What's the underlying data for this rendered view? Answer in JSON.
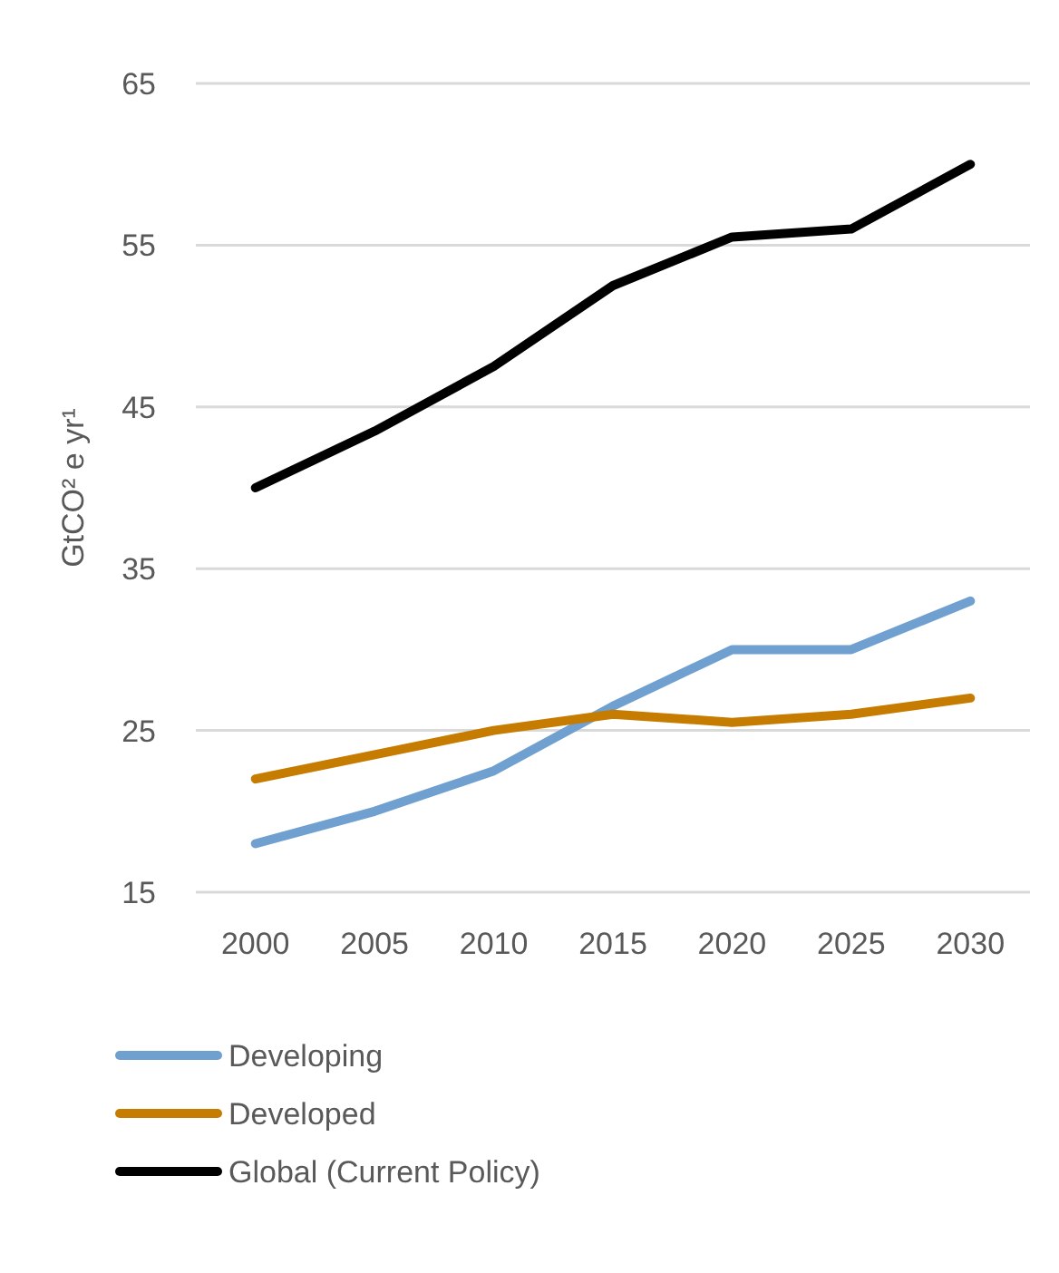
{
  "chart_data": {
    "type": "line",
    "ylabel": "GtCO² e yr¹",
    "categories": [
      "2000",
      "2005",
      "2010",
      "2015",
      "2020",
      "2025",
      "2030"
    ],
    "series": [
      {
        "name": "Developing",
        "color": "#6fa0d0",
        "values": [
          18,
          20,
          22.5,
          26.5,
          30,
          30,
          33
        ]
      },
      {
        "name": "Developed",
        "color": "#c67c00",
        "values": [
          22,
          23.5,
          25,
          26,
          25.5,
          26,
          27
        ]
      },
      {
        "name": "Global (Current Policy)",
        "color": "#000000",
        "values": [
          40,
          43.5,
          47.5,
          52.5,
          55.5,
          56,
          60
        ]
      }
    ],
    "ylim": [
      15,
      65
    ],
    "yticks": [
      15,
      25,
      35,
      45,
      55,
      65
    ],
    "grid": "y",
    "legend": "bottom",
    "marker": "none",
    "line_style": "solid"
  }
}
